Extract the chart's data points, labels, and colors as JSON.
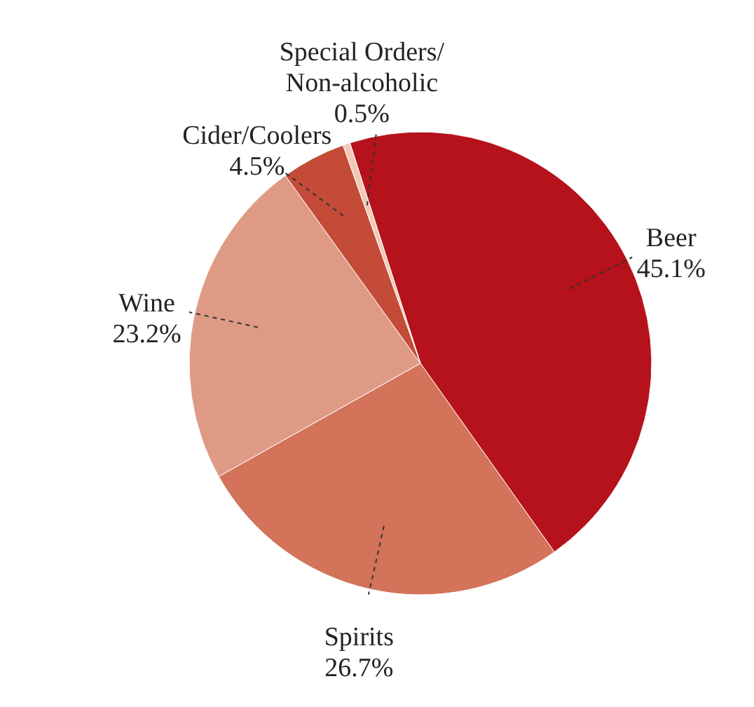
{
  "chart_data": {
    "type": "pie",
    "categories": [
      "Beer",
      "Spirits",
      "Wine",
      "Cider/Coolers",
      "Special Orders/Non-alcoholic"
    ],
    "values": [
      45.1,
      26.7,
      23.2,
      4.5,
      0.5
    ],
    "value_labels": [
      "45.1%",
      "26.7%",
      "23.2%",
      "4.5%",
      "0.5%"
    ],
    "colors": [
      "#b5121b",
      "#d2735a",
      "#df9a86",
      "#c44b38",
      "#f2c9b8"
    ],
    "legend": false
  }
}
